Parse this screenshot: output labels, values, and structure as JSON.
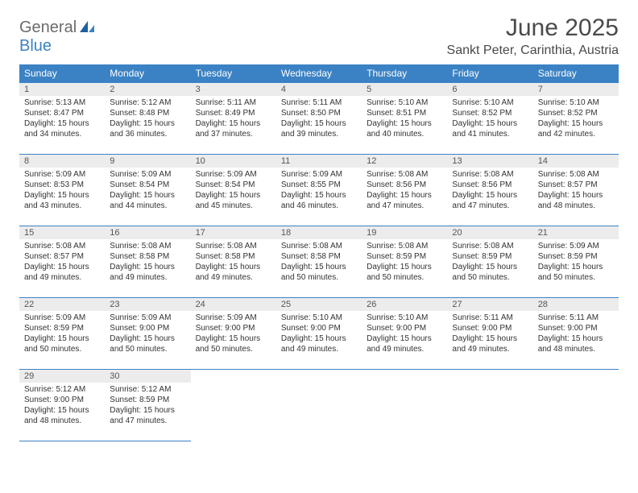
{
  "logo": {
    "word1": "General",
    "word2": "Blue"
  },
  "title": "June 2025",
  "location": "Sankt Peter, Carinthia, Austria",
  "colors": {
    "header_bg": "#3b82c4",
    "header_text": "#ffffff",
    "daynum_bg": "#ececec",
    "daynum_text": "#555555",
    "body_text": "#333333",
    "title_text": "#4a4a4a",
    "rule": "#3b82c4"
  },
  "weekdays": [
    "Sunday",
    "Monday",
    "Tuesday",
    "Wednesday",
    "Thursday",
    "Friday",
    "Saturday"
  ],
  "weeks": [
    [
      {
        "n": "1",
        "sr": "Sunrise: 5:13 AM",
        "ss": "Sunset: 8:47 PM",
        "dl": "Daylight: 15 hours and 34 minutes."
      },
      {
        "n": "2",
        "sr": "Sunrise: 5:12 AM",
        "ss": "Sunset: 8:48 PM",
        "dl": "Daylight: 15 hours and 36 minutes."
      },
      {
        "n": "3",
        "sr": "Sunrise: 5:11 AM",
        "ss": "Sunset: 8:49 PM",
        "dl": "Daylight: 15 hours and 37 minutes."
      },
      {
        "n": "4",
        "sr": "Sunrise: 5:11 AM",
        "ss": "Sunset: 8:50 PM",
        "dl": "Daylight: 15 hours and 39 minutes."
      },
      {
        "n": "5",
        "sr": "Sunrise: 5:10 AM",
        "ss": "Sunset: 8:51 PM",
        "dl": "Daylight: 15 hours and 40 minutes."
      },
      {
        "n": "6",
        "sr": "Sunrise: 5:10 AM",
        "ss": "Sunset: 8:52 PM",
        "dl": "Daylight: 15 hours and 41 minutes."
      },
      {
        "n": "7",
        "sr": "Sunrise: 5:10 AM",
        "ss": "Sunset: 8:52 PM",
        "dl": "Daylight: 15 hours and 42 minutes."
      }
    ],
    [
      {
        "n": "8",
        "sr": "Sunrise: 5:09 AM",
        "ss": "Sunset: 8:53 PM",
        "dl": "Daylight: 15 hours and 43 minutes."
      },
      {
        "n": "9",
        "sr": "Sunrise: 5:09 AM",
        "ss": "Sunset: 8:54 PM",
        "dl": "Daylight: 15 hours and 44 minutes."
      },
      {
        "n": "10",
        "sr": "Sunrise: 5:09 AM",
        "ss": "Sunset: 8:54 PM",
        "dl": "Daylight: 15 hours and 45 minutes."
      },
      {
        "n": "11",
        "sr": "Sunrise: 5:09 AM",
        "ss": "Sunset: 8:55 PM",
        "dl": "Daylight: 15 hours and 46 minutes."
      },
      {
        "n": "12",
        "sr": "Sunrise: 5:08 AM",
        "ss": "Sunset: 8:56 PM",
        "dl": "Daylight: 15 hours and 47 minutes."
      },
      {
        "n": "13",
        "sr": "Sunrise: 5:08 AM",
        "ss": "Sunset: 8:56 PM",
        "dl": "Daylight: 15 hours and 47 minutes."
      },
      {
        "n": "14",
        "sr": "Sunrise: 5:08 AM",
        "ss": "Sunset: 8:57 PM",
        "dl": "Daylight: 15 hours and 48 minutes."
      }
    ],
    [
      {
        "n": "15",
        "sr": "Sunrise: 5:08 AM",
        "ss": "Sunset: 8:57 PM",
        "dl": "Daylight: 15 hours and 49 minutes."
      },
      {
        "n": "16",
        "sr": "Sunrise: 5:08 AM",
        "ss": "Sunset: 8:58 PM",
        "dl": "Daylight: 15 hours and 49 minutes."
      },
      {
        "n": "17",
        "sr": "Sunrise: 5:08 AM",
        "ss": "Sunset: 8:58 PM",
        "dl": "Daylight: 15 hours and 49 minutes."
      },
      {
        "n": "18",
        "sr": "Sunrise: 5:08 AM",
        "ss": "Sunset: 8:58 PM",
        "dl": "Daylight: 15 hours and 50 minutes."
      },
      {
        "n": "19",
        "sr": "Sunrise: 5:08 AM",
        "ss": "Sunset: 8:59 PM",
        "dl": "Daylight: 15 hours and 50 minutes."
      },
      {
        "n": "20",
        "sr": "Sunrise: 5:08 AM",
        "ss": "Sunset: 8:59 PM",
        "dl": "Daylight: 15 hours and 50 minutes."
      },
      {
        "n": "21",
        "sr": "Sunrise: 5:09 AM",
        "ss": "Sunset: 8:59 PM",
        "dl": "Daylight: 15 hours and 50 minutes."
      }
    ],
    [
      {
        "n": "22",
        "sr": "Sunrise: 5:09 AM",
        "ss": "Sunset: 8:59 PM",
        "dl": "Daylight: 15 hours and 50 minutes."
      },
      {
        "n": "23",
        "sr": "Sunrise: 5:09 AM",
        "ss": "Sunset: 9:00 PM",
        "dl": "Daylight: 15 hours and 50 minutes."
      },
      {
        "n": "24",
        "sr": "Sunrise: 5:09 AM",
        "ss": "Sunset: 9:00 PM",
        "dl": "Daylight: 15 hours and 50 minutes."
      },
      {
        "n": "25",
        "sr": "Sunrise: 5:10 AM",
        "ss": "Sunset: 9:00 PM",
        "dl": "Daylight: 15 hours and 49 minutes."
      },
      {
        "n": "26",
        "sr": "Sunrise: 5:10 AM",
        "ss": "Sunset: 9:00 PM",
        "dl": "Daylight: 15 hours and 49 minutes."
      },
      {
        "n": "27",
        "sr": "Sunrise: 5:11 AM",
        "ss": "Sunset: 9:00 PM",
        "dl": "Daylight: 15 hours and 49 minutes."
      },
      {
        "n": "28",
        "sr": "Sunrise: 5:11 AM",
        "ss": "Sunset: 9:00 PM",
        "dl": "Daylight: 15 hours and 48 minutes."
      }
    ],
    [
      {
        "n": "29",
        "sr": "Sunrise: 5:12 AM",
        "ss": "Sunset: 9:00 PM",
        "dl": "Daylight: 15 hours and 48 minutes."
      },
      {
        "n": "30",
        "sr": "Sunrise: 5:12 AM",
        "ss": "Sunset: 8:59 PM",
        "dl": "Daylight: 15 hours and 47 minutes."
      },
      null,
      null,
      null,
      null,
      null
    ]
  ]
}
